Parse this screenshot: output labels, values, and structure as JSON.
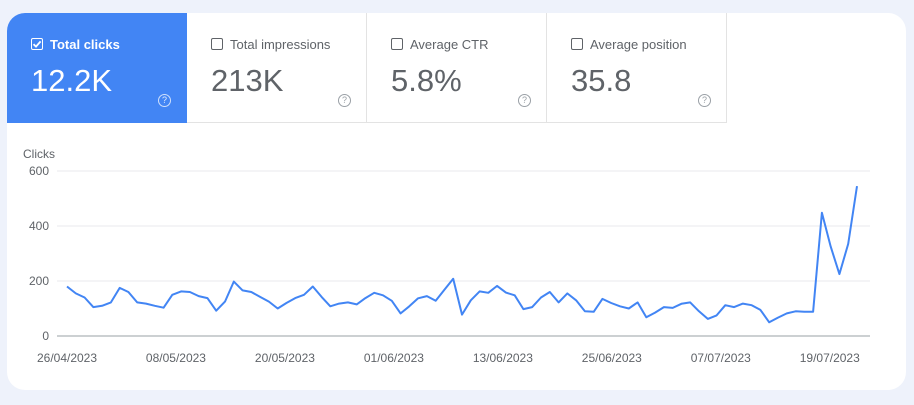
{
  "metrics": [
    {
      "label": "Total clicks",
      "value": "12.2K",
      "selected": true,
      "help_icon": "help-circle-icon"
    },
    {
      "label": "Total impressions",
      "value": "213K",
      "selected": false,
      "help_icon": "help-circle-icon"
    },
    {
      "label": "Average CTR",
      "value": "5.8%",
      "selected": false,
      "help_icon": "help-circle-icon"
    },
    {
      "label": "Average position",
      "value": "35.8",
      "selected": false,
      "help_icon": "help-circle-icon"
    }
  ],
  "help_glyph": "?",
  "colors": {
    "accent": "#4285f4",
    "line": "#4285f4",
    "grid": "#e8eaed",
    "text": "#5f6368",
    "background": "#eef2fb"
  },
  "chart_data": {
    "type": "line",
    "ylabel": "Clicks",
    "ylim": [
      0,
      600
    ],
    "yticks": [
      "600",
      "400",
      "200",
      "0"
    ],
    "grid": true,
    "x_start": "26/04/2023",
    "x_end": "22/07/2023",
    "xticks": [
      "26/04/2023",
      "08/05/2023",
      "20/05/2023",
      "01/06/2023",
      "13/06/2023",
      "25/06/2023",
      "07/07/2023",
      "19/07/2023"
    ],
    "series": [
      {
        "values": [
          180,
          155,
          140,
          105,
          110,
          122,
          175,
          160,
          122,
          118,
          110,
          103,
          150,
          162,
          160,
          145,
          138,
          92,
          125,
          198,
          166,
          160,
          142,
          125,
          100,
          120,
          138,
          150,
          180,
          142,
          108,
          118,
          122,
          115,
          138,
          157,
          148,
          128,
          82,
          108,
          137,
          145,
          128,
          168,
          208,
          78,
          130,
          162,
          157,
          182,
          158,
          148,
          98,
          105,
          140,
          160,
          122,
          155,
          130,
          90,
          88,
          135,
          120,
          108,
          100,
          122,
          68,
          85,
          105,
          102,
          117,
          122,
          90,
          62,
          75,
          112,
          105,
          118,
          112,
          95,
          50,
          67,
          82,
          90,
          88,
          88,
          448,
          325,
          225,
          335,
          545
        ]
      }
    ]
  }
}
